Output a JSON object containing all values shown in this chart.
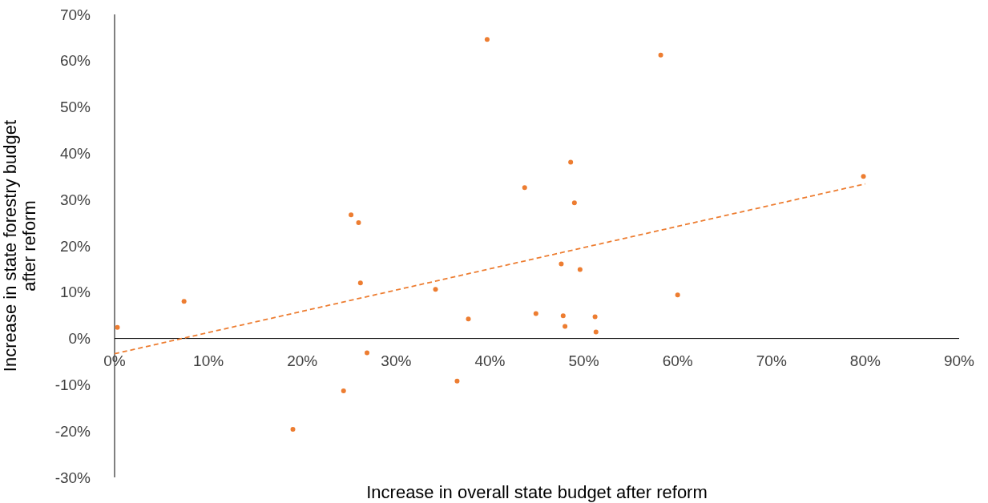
{
  "chart_data": {
    "type": "scatter",
    "xlabel": "Increase in overall state budget after reform",
    "ylabel": "Increase in state forestry budget after reform",
    "xlim": [
      0,
      90
    ],
    "ylim": [
      -30,
      70
    ],
    "xticks": [
      {
        "value": 0,
        "label": "0%"
      },
      {
        "value": 10,
        "label": "10%"
      },
      {
        "value": 20,
        "label": "20%"
      },
      {
        "value": 30,
        "label": "30%"
      },
      {
        "value": 40,
        "label": "40%"
      },
      {
        "value": 50,
        "label": "50%"
      },
      {
        "value": 60,
        "label": "60%"
      },
      {
        "value": 70,
        "label": "70%"
      },
      {
        "value": 80,
        "label": "80%"
      },
      {
        "value": 90,
        "label": "90%"
      }
    ],
    "yticks": [
      {
        "value": -30,
        "label": "-30%"
      },
      {
        "value": -20,
        "label": "-20%"
      },
      {
        "value": -10,
        "label": "-10%"
      },
      {
        "value": 0,
        "label": "0%"
      },
      {
        "value": 10,
        "label": "10%"
      },
      {
        "value": 20,
        "label": "20%"
      },
      {
        "value": 30,
        "label": "30%"
      },
      {
        "value": 40,
        "label": "40%"
      },
      {
        "value": 50,
        "label": "50%"
      },
      {
        "value": 60,
        "label": "60%"
      },
      {
        "value": 70,
        "label": "70%"
      }
    ],
    "grid": false,
    "series": [
      {
        "marker": "circle",
        "color": "#ed7d31",
        "x": [
          0.3,
          7.4,
          19.0,
          24.4,
          25.2,
          26.0,
          26.2,
          26.9,
          34.2,
          36.5,
          37.7,
          39.7,
          43.7,
          44.9,
          47.6,
          47.8,
          48.0,
          48.6,
          49.0,
          49.6,
          51.2,
          51.3,
          58.2,
          60.0,
          79.8
        ],
        "values": [
          2.4,
          8.0,
          -19.6,
          -11.3,
          26.7,
          25.0,
          12.0,
          -3.1,
          10.6,
          -9.2,
          4.2,
          64.6,
          32.6,
          5.4,
          16.1,
          4.9,
          2.6,
          38.1,
          29.3,
          14.9,
          4.7,
          1.4,
          61.2,
          9.4,
          35.0
        ]
      },
      {
        "type": "line",
        "color": "#ed7d31",
        "line_style": "dashed",
        "x": [
          0,
          80
        ],
        "values": [
          -3.3,
          33.4
        ]
      }
    ]
  }
}
